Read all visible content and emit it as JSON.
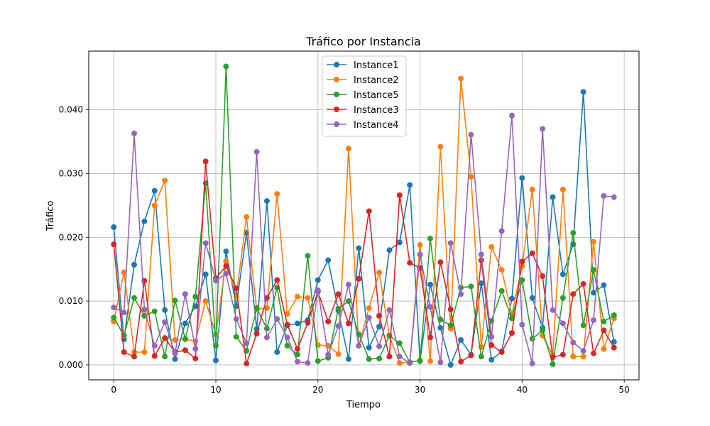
{
  "chart_data": {
    "type": "line",
    "title": "Tráfico por Instancia",
    "xlabel": "Tiempo",
    "ylabel": "Tráfico",
    "xlim": [
      -2.45,
      51.45
    ],
    "ylim": [
      -0.00235,
      0.0492
    ],
    "xticks": [
      0,
      10,
      20,
      30,
      40,
      50
    ],
    "yticks": [
      0.0,
      0.01,
      0.02,
      0.03,
      0.04
    ],
    "ytick_labels": [
      "0.000",
      "0.010",
      "0.020",
      "0.030",
      "0.040"
    ],
    "grid": true,
    "legend_position": "top-center",
    "marker": "circle",
    "x": [
      0,
      1,
      2,
      3,
      4,
      5,
      6,
      7,
      8,
      9,
      10,
      11,
      12,
      13,
      14,
      15,
      16,
      17,
      18,
      19,
      20,
      21,
      22,
      23,
      24,
      25,
      26,
      27,
      28,
      29,
      30,
      31,
      32,
      33,
      34,
      35,
      36,
      37,
      38,
      39,
      40,
      41,
      42,
      43,
      44,
      45,
      46,
      47,
      48,
      49
    ],
    "series": [
      {
        "name": "Instance1",
        "color": "#1f77b4",
        "values": [
          0.0216,
          0.004,
          0.0157,
          0.0225,
          0.0273,
          0.0086,
          0.0009,
          0.0065,
          0.0092,
          0.0142,
          0.0007,
          0.0178,
          0.0092,
          0.0207,
          0.0056,
          0.0257,
          0.002,
          0.0062,
          0.0065,
          0.007,
          0.0133,
          0.0164,
          0.0085,
          0.0009,
          0.0183,
          0.0027,
          0.006,
          0.018,
          0.0192,
          0.0282,
          0.0006,
          0.0126,
          0.0058,
          0.0,
          0.0039,
          0.0016,
          0.0128,
          0.0008,
          0.0021,
          0.0104,
          0.0293,
          0.0105,
          0.0058,
          0.0263,
          0.0142,
          0.0189,
          0.0428,
          0.0113,
          0.0125,
          0.0036
        ]
      },
      {
        "name": "Instance2",
        "color": "#ff7f0e",
        "values": [
          0.0068,
          0.0145,
          0.002,
          0.002,
          0.025,
          0.0289,
          0.0039,
          0.004,
          0.0037,
          0.01,
          0.0048,
          0.0162,
          0.0108,
          0.0232,
          0.0087,
          0.0089,
          0.0268,
          0.008,
          0.0107,
          0.0105,
          0.0031,
          0.003,
          0.0017,
          0.0339,
          0.003,
          0.0089,
          0.0145,
          0.0045,
          0.0003,
          0.0004,
          0.0188,
          0.0006,
          0.0342,
          0.0057,
          0.0449,
          0.0295,
          0.0028,
          0.0185,
          0.0149,
          0.0079,
          0.0155,
          0.0275,
          0.0046,
          0.0015,
          0.0275,
          0.0013,
          0.0013,
          0.0193,
          0.0025,
          0.0073
        ]
      },
      {
        "name": "Instance5",
        "color": "#2ca02c",
        "values": [
          0.0074,
          0.0046,
          0.0105,
          0.0077,
          0.0084,
          0.0013,
          0.0101,
          0.0041,
          0.0107,
          0.0285,
          0.003,
          0.0468,
          0.0044,
          0.0022,
          0.0089,
          0.0057,
          0.0121,
          0.003,
          0.0016,
          0.0171,
          0.0006,
          0.0011,
          0.0088,
          0.01,
          0.0048,
          0.0009,
          0.001,
          0.0046,
          0.0034,
          0.0004,
          0.0007,
          0.0198,
          0.0071,
          0.0062,
          0.0121,
          0.0123,
          0.0013,
          0.0069,
          0.0116,
          0.0073,
          0.0133,
          0.0041,
          0.0054,
          0.0001,
          0.0105,
          0.0207,
          0.0062,
          0.0149,
          0.0068,
          0.0078
        ]
      },
      {
        "name": "Instance3",
        "color": "#d62728",
        "values": [
          0.0189,
          0.002,
          0.0013,
          0.0132,
          0.0014,
          0.0042,
          0.002,
          0.0023,
          0.001,
          0.0319,
          0.0136,
          0.0155,
          0.012,
          0.0002,
          0.0049,
          0.0105,
          0.0133,
          0.0063,
          0.0025,
          0.0066,
          0.0115,
          0.0068,
          0.0111,
          0.0065,
          0.0135,
          0.0241,
          0.0077,
          0.0013,
          0.0266,
          0.016,
          0.0152,
          0.0043,
          0.0161,
          0.0087,
          0.0005,
          0.0015,
          0.0164,
          0.0031,
          0.002,
          0.005,
          0.0162,
          0.0175,
          0.0139,
          0.0012,
          0.0016,
          0.0111,
          0.0127,
          0.0018,
          0.0054,
          0.0027
        ]
      },
      {
        "name": "Instance4",
        "color": "#9467bd",
        "values": [
          0.009,
          0.0082,
          0.0363,
          0.0087,
          0.003,
          0.0067,
          0.0018,
          0.0111,
          0.0025,
          0.0191,
          0.0132,
          0.0143,
          0.0072,
          0.0034,
          0.0334,
          0.0043,
          0.0072,
          0.0043,
          0.0005,
          0.0003,
          0.0117,
          0.0016,
          0.0061,
          0.0126,
          0.003,
          0.0074,
          0.0029,
          0.0086,
          0.0013,
          0.0003,
          0.0173,
          0.0091,
          0.0004,
          0.0191,
          0.0111,
          0.0361,
          0.0173,
          0.0044,
          0.021,
          0.0391,
          0.0063,
          0.0002,
          0.037,
          0.0086,
          0.0065,
          0.0035,
          0.0022,
          0.007,
          0.0265,
          0.0263
        ]
      }
    ]
  }
}
